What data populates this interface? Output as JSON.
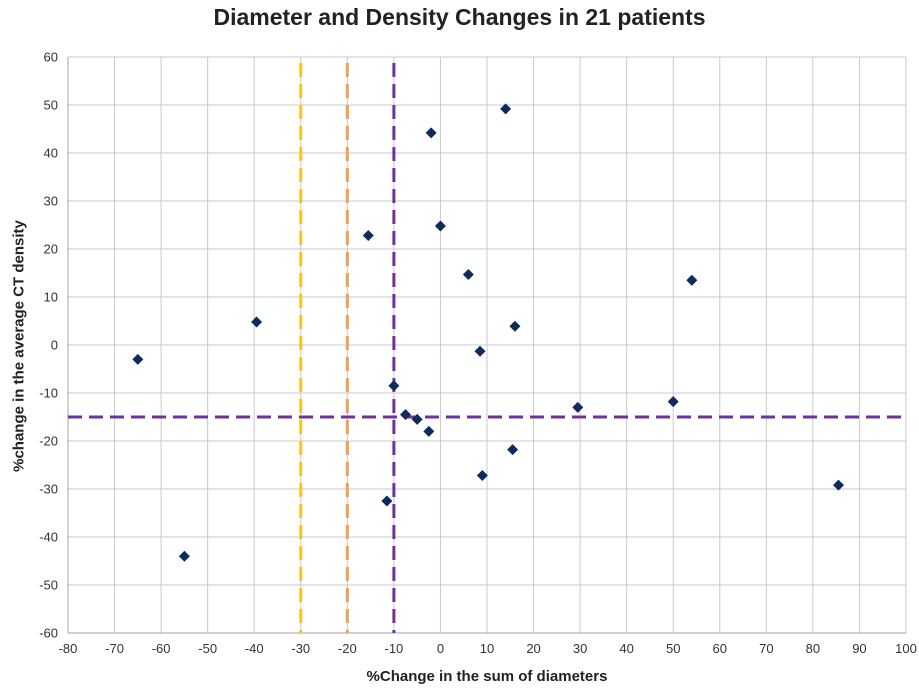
{
  "chart_data": {
    "type": "scatter",
    "title": "Diameter and Density Changes in 21 patients",
    "xlabel": "%Change in the sum of diameters",
    "ylabel": "%change in the average CT density",
    "xlim": [
      -80,
      100
    ],
    "ylim": [
      -60,
      60
    ],
    "xticks": [
      -80,
      -70,
      -60,
      -50,
      -40,
      -30,
      -20,
      -10,
      0,
      10,
      20,
      30,
      40,
      50,
      60,
      70,
      80,
      90,
      100
    ],
    "yticks": [
      -60,
      -50,
      -40,
      -30,
      -20,
      -10,
      0,
      10,
      20,
      30,
      40,
      50,
      60
    ],
    "grid": true,
    "legend": "none",
    "marker": "diamond",
    "marker_color": "#0f2a5c",
    "points": [
      {
        "x": -65,
        "y": -3
      },
      {
        "x": -55,
        "y": -44
      },
      {
        "x": -39.5,
        "y": 4.8
      },
      {
        "x": -15.5,
        "y": 22.8
      },
      {
        "x": -11.5,
        "y": -32.5
      },
      {
        "x": -10,
        "y": -8.5
      },
      {
        "x": -7.5,
        "y": -14.5
      },
      {
        "x": -5,
        "y": -15.5
      },
      {
        "x": -2.5,
        "y": -18
      },
      {
        "x": -2,
        "y": 44.2
      },
      {
        "x": 0,
        "y": 24.8
      },
      {
        "x": 6,
        "y": 14.7
      },
      {
        "x": 8.5,
        "y": -1.3
      },
      {
        "x": 9,
        "y": -27.2
      },
      {
        "x": 14,
        "y": 49.2
      },
      {
        "x": 15.5,
        "y": -21.8
      },
      {
        "x": 16,
        "y": 3.9
      },
      {
        "x": 29.5,
        "y": -13
      },
      {
        "x": 50,
        "y": -11.8
      },
      {
        "x": 54,
        "y": 13.5
      },
      {
        "x": 85.5,
        "y": -29.2
      }
    ],
    "reference_lines": [
      {
        "orientation": "vertical",
        "value": -30,
        "color": "#f5c518",
        "style": "dashed"
      },
      {
        "orientation": "vertical",
        "value": -20,
        "color": "#f0a055",
        "style": "dashed"
      },
      {
        "orientation": "vertical",
        "value": -10,
        "color": "#7030a0",
        "style": "dashed"
      },
      {
        "orientation": "horizontal",
        "value": -15,
        "color": "#7030a0",
        "style": "dashed"
      }
    ]
  }
}
